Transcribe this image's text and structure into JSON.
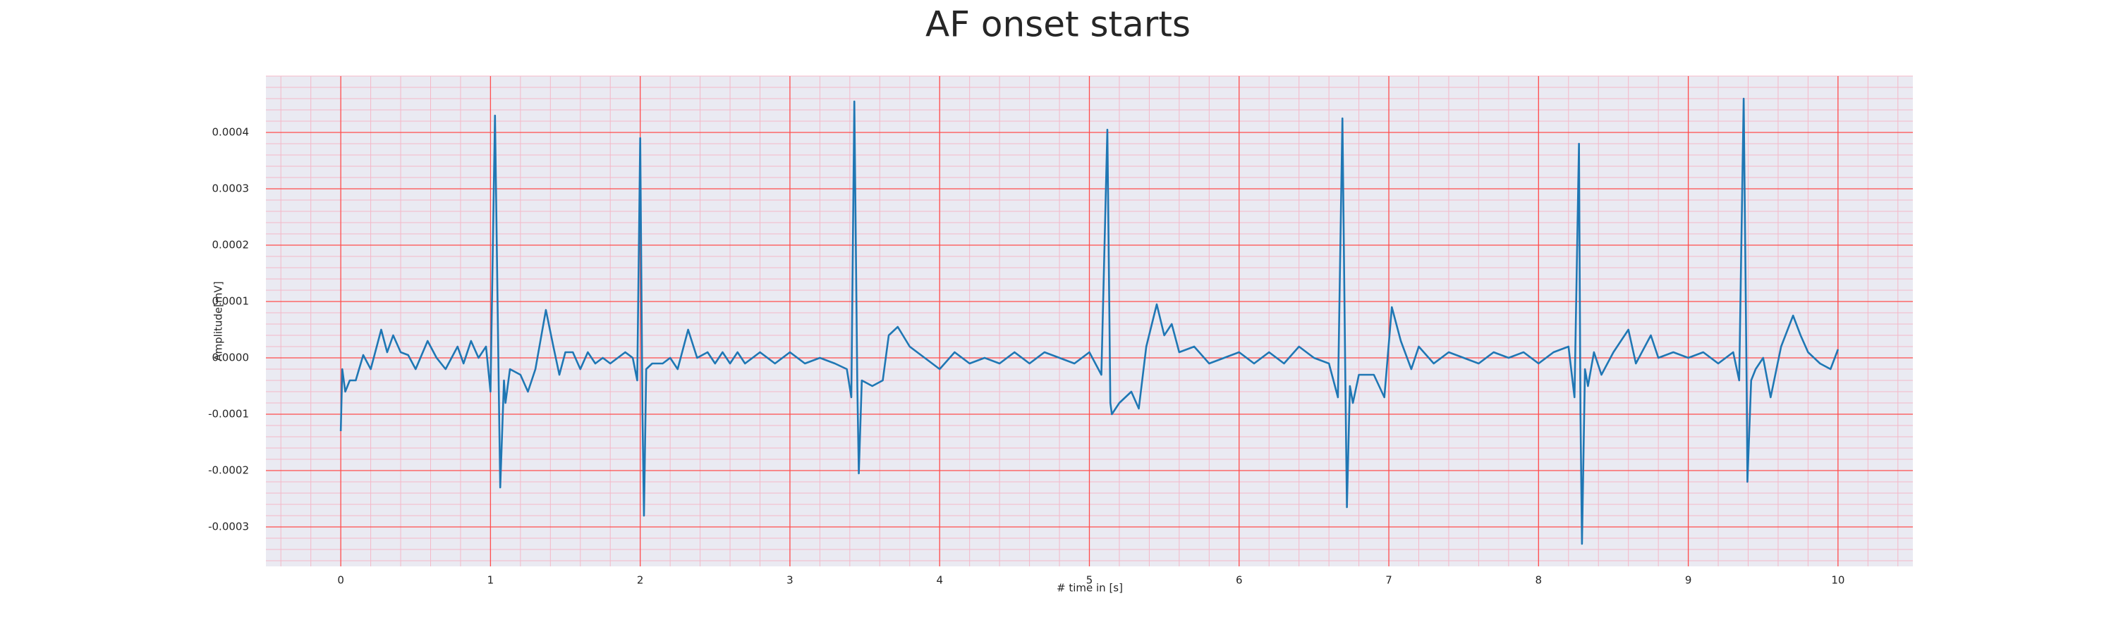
{
  "chart_data": {
    "type": "line",
    "title": "AF onset starts",
    "x_label": "# time in [s]",
    "y_label": "Amplitude[mV]",
    "color": "#1f77b4",
    "background": "#eaeaf2",
    "grid": true,
    "grid_color": "#ff4d4d",
    "minor_grid": true,
    "minor_grid_color": "#f4b8c8",
    "xlim": [
      -0.5,
      10.5
    ],
    "xticks": [
      0,
      1,
      2,
      3,
      4,
      5,
      6,
      7,
      8,
      9,
      10
    ],
    "ylim": [
      -0.00037,
      0.0005
    ],
    "yticks": [
      -0.0003,
      -0.0002,
      -0.0001,
      {
        "value": 0,
        "label": "0.0000"
      },
      0.0001,
      0.0002,
      0.0003,
      0.0004
    ],
    "x": [
      0,
      0.01,
      0.03,
      0.06,
      0.1,
      0.15,
      0.2,
      0.27,
      0.31,
      0.35,
      0.4,
      0.45,
      0.5,
      0.58,
      0.64,
      0.7,
      0.78,
      0.82,
      0.87,
      0.92,
      0.97,
      1.0,
      1.03,
      1.055,
      1.065,
      1.09,
      1.1,
      1.13,
      1.2,
      1.25,
      1.3,
      1.37,
      1.42,
      1.46,
      1.5,
      1.55,
      1.6,
      1.65,
      1.7,
      1.75,
      1.8,
      1.85,
      1.9,
      1.95,
      1.98,
      2.0,
      2.015,
      2.025,
      2.04,
      2.08,
      2.15,
      2.2,
      2.25,
      2.32,
      2.38,
      2.45,
      2.5,
      2.55,
      2.6,
      2.65,
      2.7,
      2.8,
      2.9,
      3.0,
      3.1,
      3.2,
      3.3,
      3.38,
      3.41,
      3.43,
      3.45,
      3.46,
      3.48,
      3.55,
      3.62,
      3.66,
      3.72,
      3.8,
      3.9,
      4.0,
      4.1,
      4.2,
      4.3,
      4.4,
      4.5,
      4.6,
      4.7,
      4.8,
      4.9,
      5.0,
      5.08,
      5.12,
      5.14,
      5.15,
      5.2,
      5.28,
      5.33,
      5.38,
      5.45,
      5.5,
      5.55,
      5.6,
      5.7,
      5.8,
      5.9,
      6.0,
      6.1,
      6.2,
      6.3,
      6.4,
      6.5,
      6.6,
      6.66,
      6.69,
      6.71,
      6.72,
      6.74,
      6.76,
      6.8,
      6.9,
      6.97,
      7.02,
      7.08,
      7.15,
      7.2,
      7.3,
      7.4,
      7.5,
      7.6,
      7.7,
      7.8,
      7.9,
      8.0,
      8.1,
      8.2,
      8.24,
      8.27,
      8.28,
      8.29,
      8.31,
      8.33,
      8.37,
      8.42,
      8.5,
      8.6,
      8.65,
      8.75,
      8.8,
      8.9,
      9.0,
      9.1,
      9.2,
      9.3,
      9.34,
      9.37,
      9.39,
      9.395,
      9.42,
      9.45,
      9.5,
      9.55,
      9.62,
      9.7,
      9.75,
      9.8,
      9.88,
      9.95,
      10.0
    ],
    "values": [
      -0.00013,
      -2e-05,
      -6e-05,
      -4e-05,
      -4e-05,
      5e-06,
      -2e-05,
      5e-05,
      1e-05,
      4e-05,
      1e-05,
      5e-06,
      -2e-05,
      3e-05,
      0.0,
      -2e-05,
      2e-05,
      -1e-05,
      3e-05,
      0.0,
      2e-05,
      -6e-05,
      0.00043,
      -5e-05,
      -0.00023,
      -4e-05,
      -8e-05,
      -2e-05,
      -3e-05,
      -6e-05,
      -2e-05,
      8.5e-05,
      2e-05,
      -3e-05,
      1e-05,
      1e-05,
      -2e-05,
      1e-05,
      -1e-05,
      0.0,
      -1e-05,
      0.0,
      1e-05,
      0.0,
      -4e-05,
      0.00039,
      -0.0001,
      -0.00028,
      -2e-05,
      -1e-05,
      -1e-05,
      0.0,
      -2e-05,
      5e-05,
      0.0,
      1e-05,
      -1e-05,
      1e-05,
      -1e-05,
      1e-05,
      -1e-05,
      1e-05,
      -1e-05,
      1e-05,
      -1e-05,
      0.0,
      -1e-05,
      -2e-05,
      -7e-05,
      0.000455,
      -5e-05,
      -0.000205,
      -4e-05,
      -5e-05,
      -4e-05,
      4e-05,
      5.5e-05,
      2e-05,
      0.0,
      -2e-05,
      1e-05,
      -1e-05,
      0.0,
      -1e-05,
      1e-05,
      -1e-05,
      1e-05,
      0.0,
      -1e-05,
      1e-05,
      -3e-05,
      0.000405,
      -8e-05,
      -0.0001,
      -8e-05,
      -6e-05,
      -9e-05,
      2e-05,
      9.5e-05,
      4e-05,
      6e-05,
      1e-05,
      2e-05,
      -1e-05,
      0.0,
      1e-05,
      -1e-05,
      1e-05,
      -1e-05,
      2e-05,
      0.0,
      -1e-05,
      -7e-05,
      0.000425,
      -5e-05,
      -0.000265,
      -5e-05,
      -8e-05,
      -3e-05,
      -3e-05,
      -7e-05,
      9e-05,
      3e-05,
      -2e-05,
      2e-05,
      -1e-05,
      1e-05,
      0.0,
      -1e-05,
      1e-05,
      0.0,
      1e-05,
      -1e-05,
      1e-05,
      2e-05,
      -7e-05,
      0.00038,
      -0.0001,
      -0.00033,
      -2e-05,
      -5e-05,
      1e-05,
      -3e-05,
      1e-05,
      5e-05,
      -1e-05,
      4e-05,
      0.0,
      1e-05,
      0.0,
      1e-05,
      -1e-05,
      1e-05,
      -4e-05,
      0.00046,
      -5e-05,
      -0.00022,
      -4e-05,
      -2e-05,
      0.0,
      -7e-05,
      2e-05,
      7.5e-05,
      4e-05,
      1e-05,
      -1e-05,
      -2e-05,
      1.5e-05
    ]
  }
}
